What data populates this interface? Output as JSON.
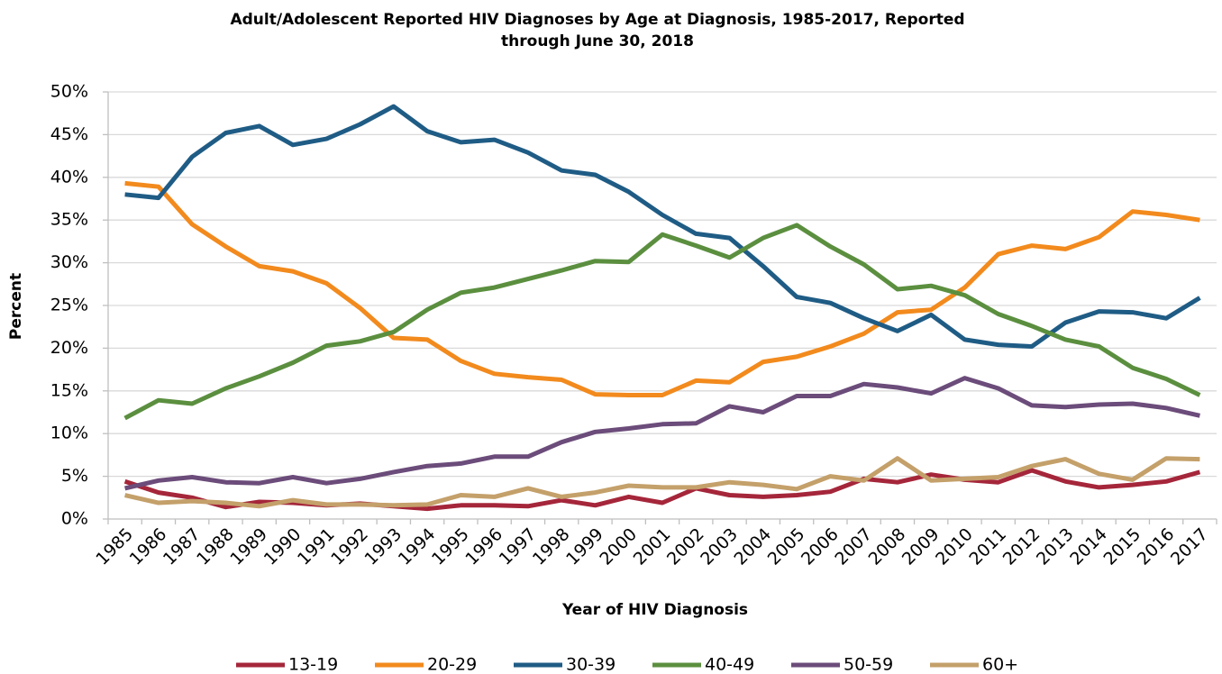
{
  "chart_data": {
    "type": "line",
    "title": [
      "Adult/Adolescent Reported HIV Diagnoses by Age at Diagnosis, 1985-2017, Reported",
      "through June 30, 2018"
    ],
    "x_label": "Year of HIV Diagnosis",
    "y_label": "Percent",
    "categories": [
      "1985",
      "1986",
      "1987",
      "1988",
      "1989",
      "1990",
      "1991",
      "1992",
      "1993",
      "1994",
      "1995",
      "1996",
      "1997",
      "1998",
      "1999",
      "2000",
      "2001",
      "2002",
      "2003",
      "2004",
      "2005",
      "2006",
      "2007",
      "2008",
      "2009",
      "2010",
      "2011",
      "2012",
      "2013",
      "2014",
      "2015",
      "2016",
      "2017"
    ],
    "ylim": [
      0,
      50
    ],
    "yticks": [
      {
        "value": 0,
        "label": "0%"
      },
      {
        "value": 5,
        "label": "5%"
      },
      {
        "value": 10,
        "label": "10%"
      },
      {
        "value": 15,
        "label": "15%"
      },
      {
        "value": 20,
        "label": "20%"
      },
      {
        "value": 25,
        "label": "25%"
      },
      {
        "value": 30,
        "label": "30%"
      },
      {
        "value": 35,
        "label": "35%"
      },
      {
        "value": 40,
        "label": "40%"
      },
      {
        "value": 45,
        "label": "45%"
      },
      {
        "value": 50,
        "label": "50%"
      }
    ],
    "grid": true,
    "legend": "bottom",
    "series": [
      {
        "name": "13-19",
        "color": "#a5263a",
        "values": [
          4.4,
          3.1,
          2.5,
          1.4,
          2.0,
          1.9,
          1.6,
          1.8,
          1.5,
          1.2,
          1.6,
          1.6,
          1.5,
          2.2,
          1.6,
          2.6,
          1.9,
          3.6,
          2.8,
          2.6,
          2.8,
          3.2,
          4.7,
          4.3,
          5.2,
          4.6,
          4.3,
          5.7,
          4.4,
          3.7,
          4.0,
          4.4,
          5.5
        ]
      },
      {
        "name": "20-29",
        "color": "#f28a1d",
        "values": [
          39.3,
          38.9,
          34.5,
          31.9,
          29.6,
          29.0,
          27.6,
          24.7,
          21.2,
          21.0,
          18.5,
          17.0,
          16.6,
          16.3,
          14.6,
          14.5,
          14.5,
          16.2,
          16.0,
          18.4,
          19.0,
          20.2,
          21.7,
          24.2,
          24.5,
          27.1,
          31.0,
          32.0,
          31.6,
          33.0,
          36.0,
          35.6,
          35.0
        ]
      },
      {
        "name": "30-39",
        "color": "#1f5c85",
        "values": [
          38.0,
          37.6,
          42.4,
          45.2,
          46.0,
          43.8,
          44.5,
          46.2,
          48.3,
          45.4,
          44.1,
          44.4,
          42.9,
          40.8,
          40.3,
          38.3,
          35.6,
          33.4,
          32.9,
          29.6,
          26.0,
          25.3,
          23.5,
          22.0,
          23.9,
          21.0,
          20.4,
          20.2,
          23.0,
          24.3,
          24.2,
          23.5,
          25.9
        ]
      },
      {
        "name": "40-49",
        "color": "#5b8f3f",
        "values": [
          11.8,
          13.9,
          13.5,
          15.3,
          16.7,
          18.3,
          20.3,
          20.8,
          21.9,
          24.5,
          26.5,
          27.1,
          28.1,
          29.1,
          30.2,
          30.1,
          33.3,
          32.0,
          30.6,
          32.9,
          34.4,
          31.9,
          29.8,
          26.9,
          27.3,
          26.2,
          24.0,
          22.6,
          21.0,
          20.2,
          17.7,
          16.4,
          14.5
        ]
      },
      {
        "name": "50-59",
        "color": "#6b4c7a",
        "values": [
          3.6,
          4.5,
          4.9,
          4.3,
          4.2,
          4.9,
          4.2,
          4.7,
          5.5,
          6.2,
          6.5,
          7.3,
          7.3,
          9.0,
          10.2,
          10.6,
          11.1,
          11.2,
          13.2,
          12.5,
          14.4,
          14.4,
          15.8,
          15.4,
          14.7,
          16.5,
          15.3,
          13.3,
          13.1,
          13.4,
          13.5,
          13.0,
          12.1
        ]
      },
      {
        "name": "60+",
        "color": "#c4a06a",
        "values": [
          2.8,
          1.9,
          2.1,
          1.9,
          1.5,
          2.2,
          1.7,
          1.7,
          1.6,
          1.7,
          2.8,
          2.6,
          3.6,
          2.6,
          3.1,
          3.9,
          3.7,
          3.7,
          4.3,
          4.0,
          3.5,
          5.0,
          4.5,
          7.1,
          4.5,
          4.7,
          4.9,
          6.2,
          7.0,
          5.3,
          4.6,
          7.1,
          7.0
        ]
      }
    ]
  }
}
